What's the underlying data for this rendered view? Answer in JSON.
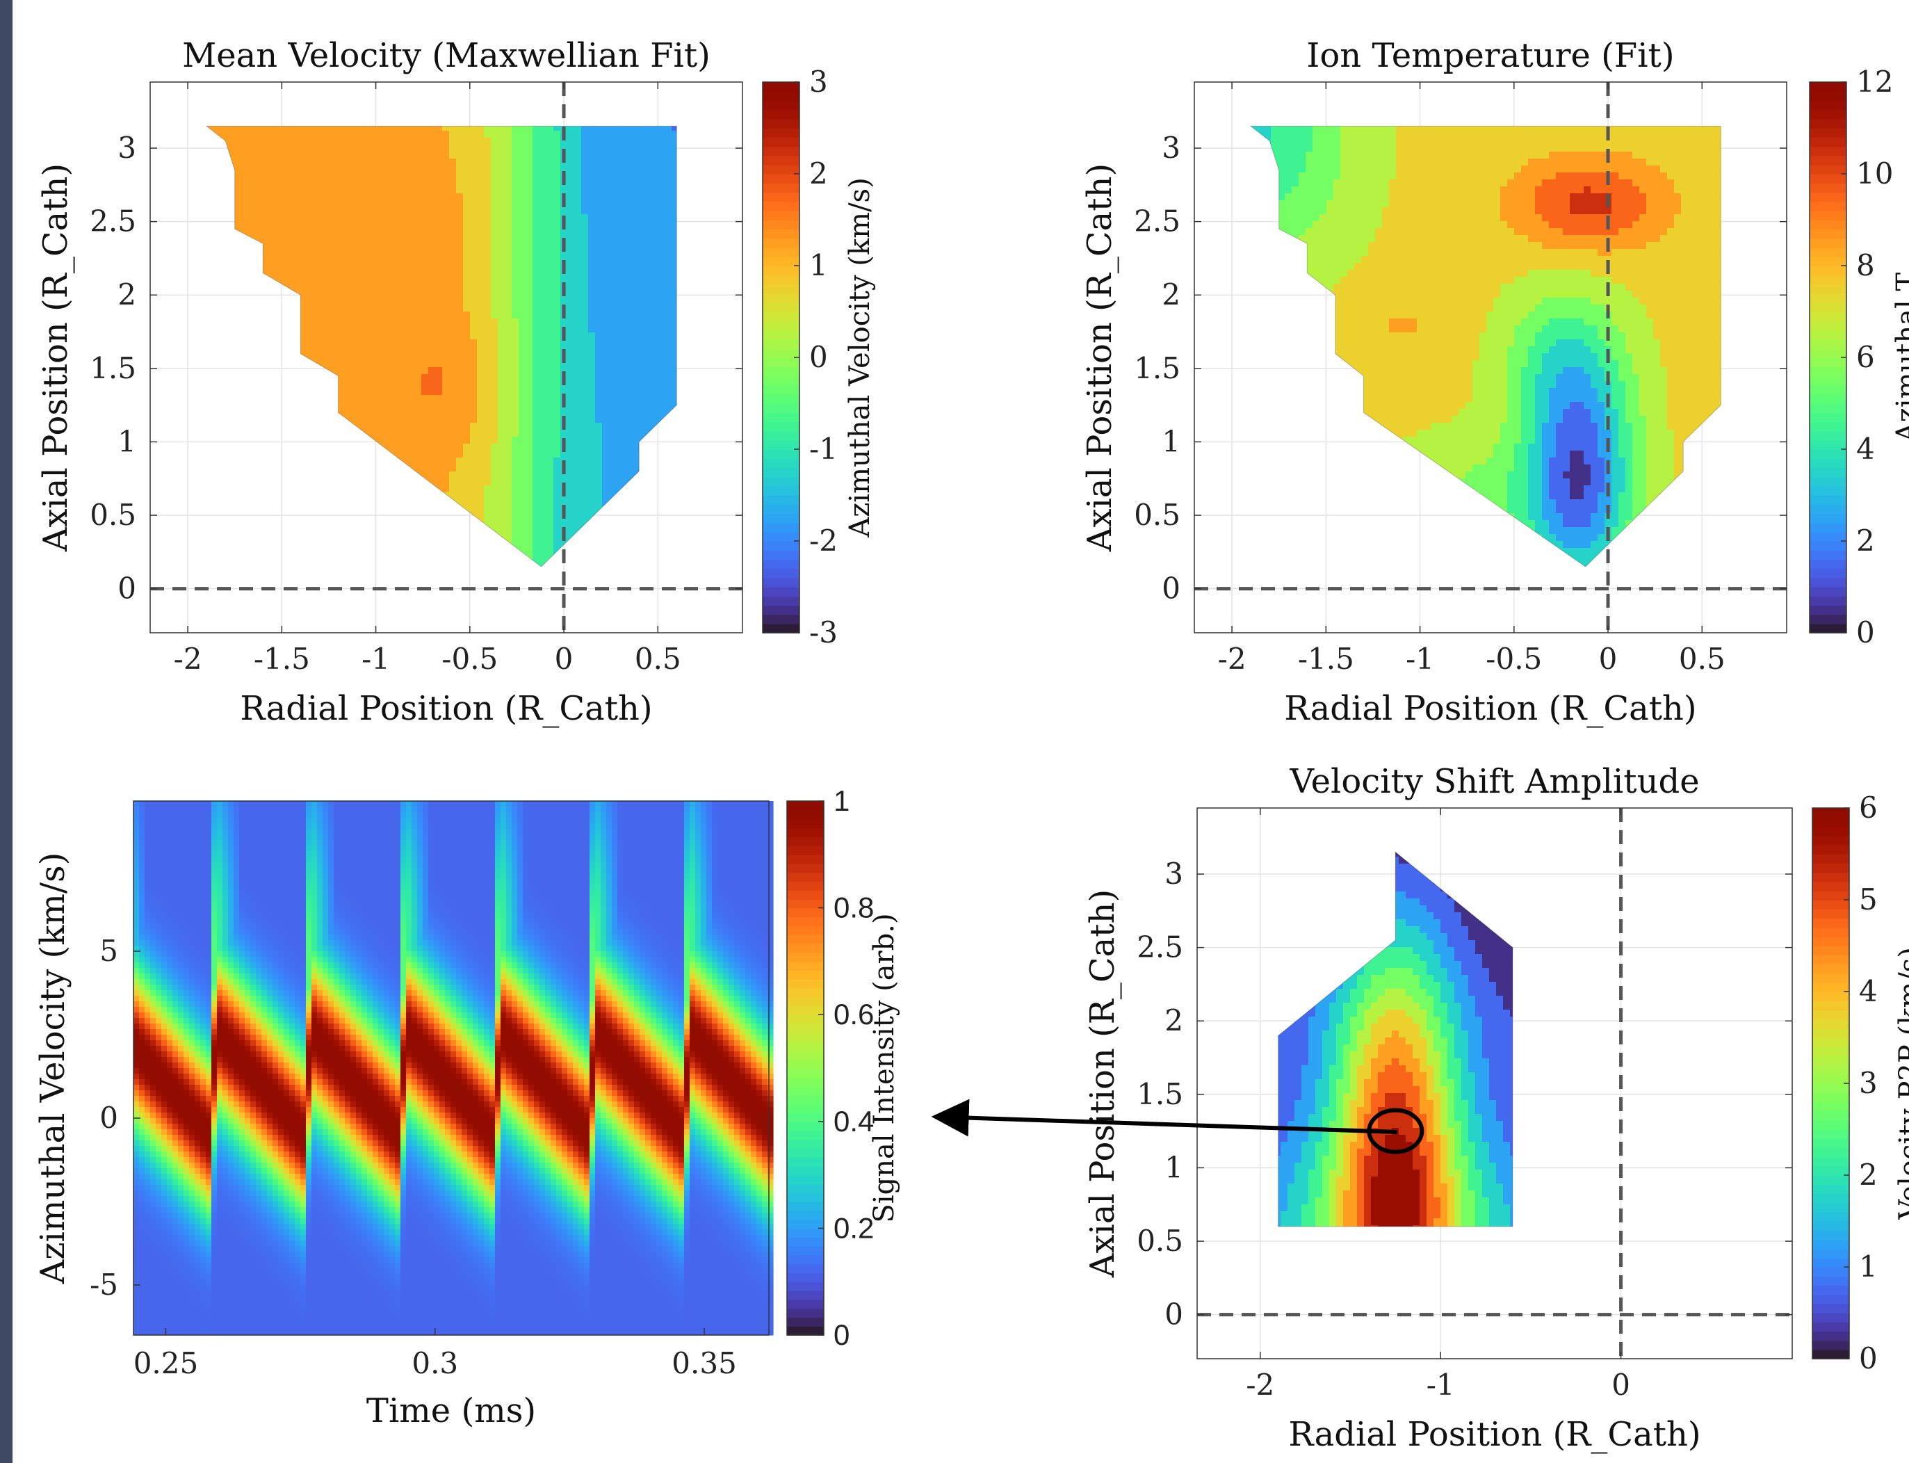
{
  "chart_data": [
    {
      "type": "contour",
      "title": "Mean Velocity (Maxwellian Fit)",
      "xlabel": "Radial Position (R_Cath)",
      "ylabel": "Axial Position (R_Cath)",
      "xlim": [
        -2.2,
        0.95
      ],
      "ylim": [
        -0.3,
        3.45
      ],
      "xticks": [
        -2,
        -1.5,
        -1,
        -0.5,
        0,
        0.5
      ],
      "yticks": [
        0,
        0.5,
        1,
        1.5,
        2,
        2.5,
        3
      ],
      "xtick_labels": [
        "-2",
        "-1.5",
        "-1",
        "-0.5",
        "0",
        "0.5"
      ],
      "ytick_labels": [
        "0",
        "0.5",
        "1",
        "1.5",
        "2",
        "2.5",
        "3"
      ],
      "colorbar": {
        "label": "Azimuthal Velocity (km/s)",
        "min": -3,
        "max": 3,
        "ticks": [
          -3,
          -2,
          -1,
          0,
          1,
          2,
          3
        ],
        "tick_labels": [
          "-3",
          "-2",
          "-1",
          "0",
          "1",
          "2",
          "3"
        ]
      },
      "colormap": "turbo",
      "reference_lines": {
        "x": 0,
        "y": 0,
        "style": "dashed"
      },
      "grid": true,
      "field": {
        "model": "velocity",
        "peak_value": 1.6,
        "peak_location": [
          -0.6,
          1.4
        ],
        "min_value": -2.3,
        "min_location": [
          0.6,
          1.2
        ]
      },
      "domain_outline": [
        [
          -1.9,
          3.15
        ],
        [
          0.6,
          3.15
        ],
        [
          0.6,
          1.25
        ],
        [
          0.4,
          1.0
        ],
        [
          0.4,
          0.8
        ],
        [
          -0.12,
          0.15
        ],
        [
          -1.2,
          1.2
        ],
        [
          -1.2,
          1.45
        ],
        [
          -1.4,
          1.6
        ],
        [
          -1.4,
          2.0
        ],
        [
          -1.6,
          2.15
        ],
        [
          -1.6,
          2.35
        ],
        [
          -1.75,
          2.45
        ],
        [
          -1.75,
          2.85
        ],
        [
          -1.8,
          3.05
        ]
      ]
    },
    {
      "type": "contour",
      "title": "Ion Temperature (Fit)",
      "xlabel": "Radial Position (R_Cath)",
      "ylabel": "Axial Position (R_Cath)",
      "xlim": [
        -2.2,
        0.95
      ],
      "ylim": [
        -0.3,
        3.45
      ],
      "xticks": [
        -2,
        -1.5,
        -1,
        -0.5,
        0,
        0.5
      ],
      "yticks": [
        0,
        0.5,
        1,
        1.5,
        2,
        2.5,
        3
      ],
      "xtick_labels": [
        "-2",
        "-1.5",
        "-1",
        "-0.5",
        "0",
        "0.5"
      ],
      "ytick_labels": [
        "0",
        "0.5",
        "1",
        "1.5",
        "2",
        "2.5",
        "3"
      ],
      "colorbar": {
        "label": "Azimuthal T",
        "min": 0,
        "max": 12,
        "ticks": [
          0,
          2,
          4,
          6,
          8,
          10,
          12
        ],
        "tick_labels": [
          "0",
          "2",
          "4",
          "6",
          "8",
          "10",
          "12"
        ]
      },
      "colormap": "turbo",
      "reference_lines": {
        "x": 0,
        "y": 0,
        "style": "dashed"
      },
      "grid": true,
      "field": {
        "model": "temperature",
        "peak_value": 10.5,
        "peak_location": [
          -0.1,
          2.6
        ],
        "min_value": 1.0,
        "min_location": [
          -0.15,
          0.4
        ]
      },
      "domain_outline": [
        [
          -1.9,
          3.15
        ],
        [
          0.6,
          3.15
        ],
        [
          0.6,
          1.25
        ],
        [
          0.4,
          1.0
        ],
        [
          0.4,
          0.8
        ],
        [
          -0.12,
          0.15
        ],
        [
          -1.3,
          1.2
        ],
        [
          -1.3,
          1.45
        ],
        [
          -1.45,
          1.6
        ],
        [
          -1.45,
          2.0
        ],
        [
          -1.6,
          2.15
        ],
        [
          -1.6,
          2.35
        ],
        [
          -1.75,
          2.45
        ],
        [
          -1.75,
          2.85
        ],
        [
          -1.8,
          3.05
        ]
      ]
    },
    {
      "type": "heatmap",
      "xlabel": "Time (ms)",
      "ylabel": "Azimuthal Velocity (km/s)",
      "xlim": [
        0.244,
        0.362
      ],
      "ylim": [
        -6.5,
        9.5
      ],
      "xticks": [
        0.25,
        0.3,
        0.35
      ],
      "yticks": [
        -5,
        0,
        5
      ],
      "xtick_labels": [
        "0.25",
        "0.3",
        "0.35"
      ],
      "ytick_labels": [
        "-5",
        "0",
        "5"
      ],
      "colorbar": {
        "label": "Signal Intensity (arb.)",
        "min": 0,
        "max": 1,
        "ticks": [
          0,
          0.2,
          0.4,
          0.6,
          0.8,
          1
        ],
        "tick_labels": [
          "0",
          "0.2",
          "0.4",
          "0.6",
          "0.8",
          "1"
        ]
      },
      "colormap": "turbo",
      "grid": false,
      "signal": {
        "period_ms": 0.0176,
        "phase_ms": 0.258,
        "velocity_high_kms": 2.6,
        "velocity_low_kms": -0.5,
        "line_width_kms": 1.6
      }
    },
    {
      "type": "contour",
      "title": "Velocity Shift Amplitude",
      "xlabel": "Radial Position (R_Cath)",
      "ylabel": "Axial Position (R_Cath)",
      "xlim": [
        -2.35,
        0.95
      ],
      "ylim": [
        -0.3,
        3.45
      ],
      "xticks": [
        -2,
        -1,
        0
      ],
      "yticks": [
        0,
        0.5,
        1,
        1.5,
        2,
        2.5,
        3
      ],
      "xtick_labels": [
        "-2",
        "-1",
        "0"
      ],
      "ytick_labels": [
        "0",
        "0.5",
        "1",
        "1.5",
        "2",
        "2.5",
        "3"
      ],
      "colorbar": {
        "label": "Velocity P2P (km/s)",
        "min": 0,
        "max": 6,
        "ticks": [
          0,
          1,
          2,
          3,
          4,
          5,
          6
        ],
        "tick_labels": [
          "0",
          "1",
          "2",
          "3",
          "4",
          "5",
          "6"
        ]
      },
      "colormap": "turbo",
      "reference_lines": {
        "x": 0,
        "y": 0,
        "style": "dashed"
      },
      "grid": true,
      "field": {
        "model": "p2p",
        "peak_value": 4.5,
        "peak_location": [
          -1.25,
          1.3
        ],
        "min_value": 0.5,
        "min_location": [
          -0.7,
          2.7
        ]
      },
      "domain_outline": [
        [
          -1.9,
          1.9
        ],
        [
          -1.25,
          2.55
        ],
        [
          -1.25,
          3.15
        ],
        [
          -0.6,
          2.5
        ],
        [
          -0.6,
          0.6
        ],
        [
          -1.9,
          0.6
        ]
      ],
      "highlight": {
        "point": [
          -1.25,
          1.25
        ]
      }
    }
  ]
}
